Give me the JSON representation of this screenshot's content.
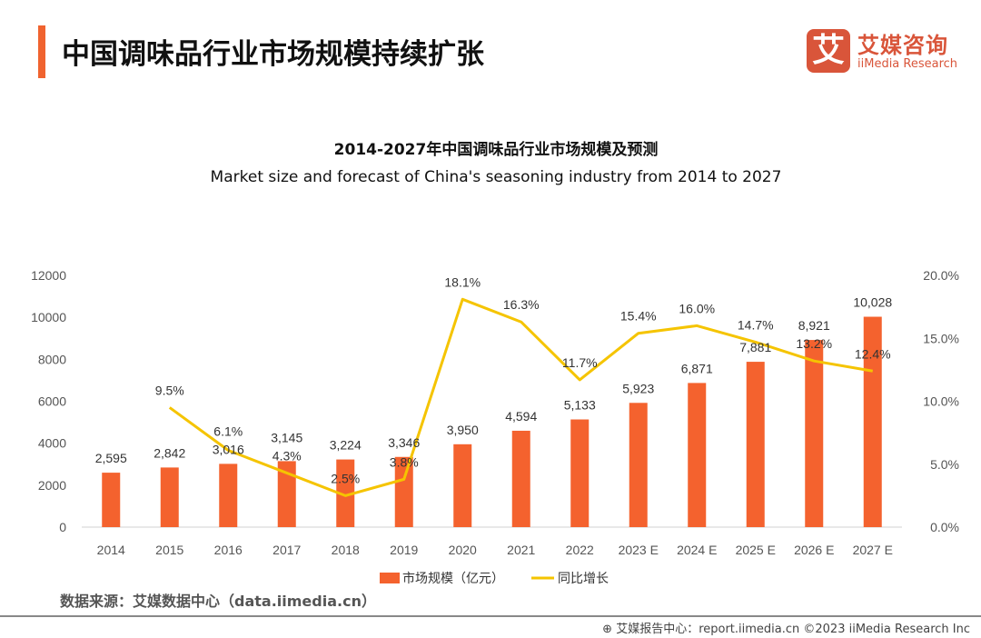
{
  "header": {
    "title": "中国调味品行业市场规模持续扩张",
    "logo_cn": "艾媒咨询",
    "logo_en": "iiMedia Research",
    "logo_mark": "艾"
  },
  "chart_data": {
    "type": "bar+line",
    "title": "2014-2027年中国调味品行业市场规模及预测",
    "subtitle": "Market size and forecast of China's seasoning industry from 2014 to 2027",
    "categories": [
      "2014",
      "2015",
      "2016",
      "2017",
      "2018",
      "2019",
      "2020",
      "2021",
      "2022",
      "2023 E",
      "2024 E",
      "2025 E",
      "2026 E",
      "2027 E"
    ],
    "series": [
      {
        "name": "市场规模（亿元）",
        "type": "bar",
        "axis": "left",
        "color": "#F4622E",
        "values": [
          2595,
          2842,
          3016,
          3145,
          3224,
          3346,
          3950,
          4594,
          5133,
          5923,
          6871,
          7881,
          8921,
          10028
        ],
        "labels": [
          "2,595",
          "2,842",
          "3,016",
          "3,145",
          "3,224",
          "3,346",
          "3,950",
          "4,594",
          "5,133",
          "5,923",
          "6,871",
          "7,881",
          "8,921",
          "10,028"
        ]
      },
      {
        "name": "同比增长",
        "type": "line",
        "axis": "right",
        "color": "#F5C400",
        "values": [
          null,
          9.5,
          6.1,
          4.3,
          2.5,
          3.8,
          18.1,
          16.3,
          11.7,
          15.4,
          16.0,
          14.7,
          13.2,
          12.4
        ],
        "labels": [
          "",
          "9.5%",
          "6.1%",
          "4.3%",
          "2.5%",
          "3.8%",
          "18.1%",
          "16.3%",
          "11.7%",
          "15.4%",
          "16.0%",
          "14.7%",
          "13.2%",
          "12.4%"
        ]
      }
    ],
    "y_left": {
      "range": [
        0,
        12000
      ],
      "ticks": [
        "0",
        "2000",
        "4000",
        "6000",
        "8000",
        "10000",
        "12000"
      ]
    },
    "y_right": {
      "range": [
        0,
        20
      ],
      "ticks": [
        "0.0%",
        "5.0%",
        "10.0%",
        "15.0%",
        "20.0%"
      ]
    },
    "grid": false,
    "legend": "bottom-center"
  },
  "footer": {
    "source": "数据来源：艾媒数据中心（data.iimedia.cn）",
    "credit": "艾媒报告中心：report.iimedia.cn  ©2023  iiMedia Research Inc"
  }
}
